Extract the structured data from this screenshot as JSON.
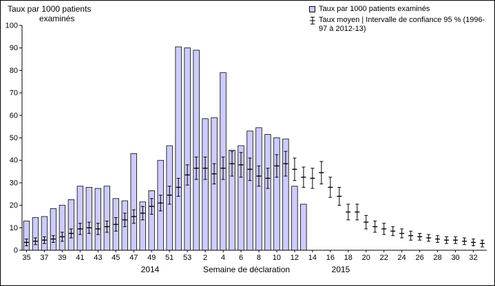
{
  "chart_data": {
    "type": "bar",
    "ylabel_line1": "Taux par 1000 patients",
    "ylabel_line2": "examinés",
    "xlabel": "Semaine de déclaration",
    "year_2014": "2014",
    "year_2015": "2015",
    "ylim": [
      0,
      100
    ],
    "ytick_labels": [
      "0",
      "10",
      "20",
      "30",
      "40",
      "50",
      "60",
      "70",
      "80",
      "90",
      "100"
    ],
    "categories": [
      "35",
      "36",
      "37",
      "38",
      "39",
      "40",
      "41",
      "42",
      "43",
      "44",
      "45",
      "46",
      "47",
      "48",
      "49",
      "50",
      "51",
      "52",
      "53",
      "1",
      "2",
      "3",
      "4",
      "5",
      "6",
      "7",
      "8",
      "9",
      "10",
      "11",
      "12",
      "13",
      "14",
      "15",
      "16",
      "17",
      "18",
      "19",
      "20",
      "21",
      "22",
      "23",
      "24",
      "25",
      "26",
      "27",
      "28",
      "29",
      "30",
      "31",
      "32",
      "33"
    ],
    "xtick_labels": [
      "35",
      "37",
      "39",
      "41",
      "43",
      "45",
      "47",
      "49",
      "51",
      "53",
      "2",
      "4",
      "6",
      "8",
      "10",
      "12",
      "14",
      "16",
      "18",
      "20",
      "22",
      "24",
      "26",
      "28",
      "30",
      "32"
    ],
    "legend": {
      "item1": "Taux par 1000 patients examinés",
      "item2_line1": "Taux moyen | Intervalle de confiance 95 % (1996-",
      "item2_line2": "97 à 2012-13)"
    },
    "series": {
      "bars": {
        "name": "Taux par 1000 patients examinés",
        "values": [
          13,
          14.5,
          15,
          18.5,
          20,
          22.5,
          28.5,
          28,
          27.5,
          28.5,
          23,
          22,
          43,
          21.5,
          26.5,
          40,
          46.5,
          90.5,
          90,
          89,
          58.5,
          59,
          79,
          44.5,
          46.5,
          53,
          54.5,
          51.5,
          50,
          49.5,
          28.5,
          20.5
        ]
      },
      "mean_ci": {
        "name": "Taux moyen | Intervalle de confiance 95 % (1996-97 à 2012-13)",
        "mean": [
          3.5,
          4,
          4.5,
          5,
          6,
          7.5,
          9.5,
          10,
          9.5,
          10.5,
          11.5,
          13.5,
          15,
          16.5,
          19.5,
          21,
          24.5,
          28,
          33.5,
          36.5,
          36.5,
          34,
          36.5,
          38.5,
          38,
          36,
          33,
          32,
          37.5,
          38.5,
          36,
          32.5,
          32,
          34.5,
          28,
          24,
          17,
          17,
          12.5,
          10.5,
          9.5,
          8.5,
          7.5,
          6.5,
          6,
          5.5,
          5,
          4.5,
          4.5,
          4,
          3.5,
          3
        ],
        "ci_half": [
          1.5,
          1.5,
          1.5,
          1.5,
          2,
          2,
          2.5,
          2.5,
          2.5,
          2.5,
          3,
          3,
          3,
          3,
          3.5,
          3.5,
          4,
          4,
          4.5,
          5,
          5,
          4.5,
          5,
          5.5,
          5.5,
          5,
          4.5,
          4.5,
          5,
          5.5,
          5,
          4.5,
          4.5,
          5,
          4.5,
          4,
          3.5,
          3.5,
          3,
          2.5,
          2.5,
          2,
          2,
          2,
          1.5,
          1.5,
          1.5,
          1.5,
          1.5,
          1.5,
          1.5,
          1.5
        ]
      }
    },
    "colors": {
      "bar_fill": "#CCCCFF",
      "bar_stroke": "#000000",
      "error_bar": "#000000",
      "axis": "#000000"
    },
    "legend_position": "top-right",
    "grid": false
  }
}
